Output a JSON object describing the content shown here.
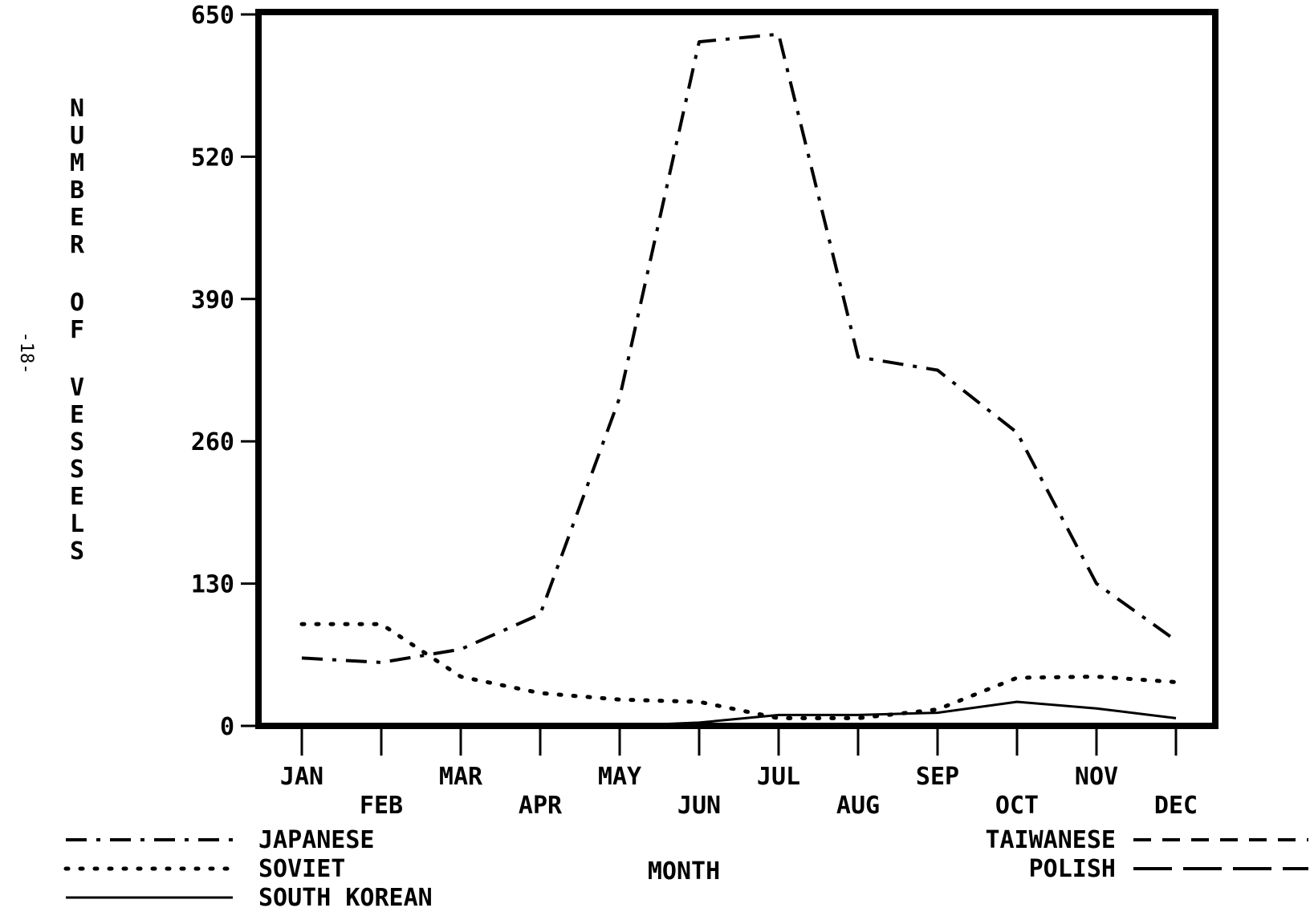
{
  "page_number": "-18-",
  "chart_data": {
    "type": "line",
    "xlabel": "MONTH",
    "ylabel": "NUMBER OF VESSELS",
    "categories": [
      "JAN",
      "FEB",
      "MAR",
      "APR",
      "MAY",
      "JUN",
      "JUL",
      "AUG",
      "SEP",
      "OCT",
      "NOV",
      "DEC"
    ],
    "yticks": [
      "0",
      "130",
      "260",
      "390",
      "520",
      "650"
    ],
    "ylim": [
      0,
      650
    ],
    "grid": false,
    "legend_position": "bottom",
    "series": [
      {
        "name": "JAPANESE",
        "style": "dash-dot",
        "values": [
          62,
          58,
          70,
          102,
          300,
          625,
          632,
          337,
          325,
          268,
          130,
          78
        ]
      },
      {
        "name": "SOVIET",
        "style": "dotted",
        "values": [
          93,
          93,
          45,
          30,
          24,
          22,
          7,
          7,
          15,
          44,
          45,
          40
        ]
      },
      {
        "name": "SOUTH KOREAN",
        "style": "solid",
        "values": [
          0,
          0,
          0,
          0,
          0,
          3,
          10,
          10,
          12,
          22,
          16,
          7
        ]
      },
      {
        "name": "TAIWANESE",
        "style": "dashed",
        "values": [
          0,
          0,
          0,
          0,
          0,
          0,
          0,
          0,
          0,
          0,
          0,
          0
        ]
      },
      {
        "name": "POLISH",
        "style": "long-dash",
        "values": [
          0,
          0,
          0,
          0,
          0,
          0,
          0,
          0,
          0,
          0,
          0,
          0
        ]
      }
    ]
  }
}
